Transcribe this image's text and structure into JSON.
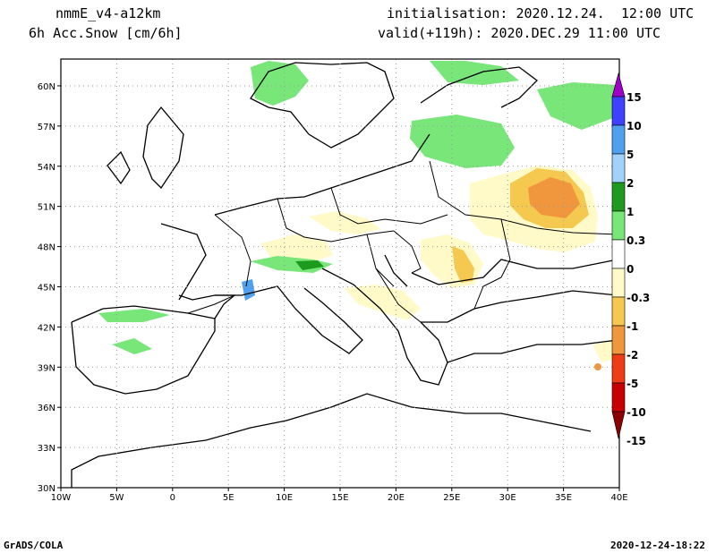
{
  "header": {
    "model": "nmmE_v4-a12km",
    "field": "6h Acc.Snow [cm/6h]",
    "init": "initialisation: 2020.12.24.  12:00 UTC",
    "valid": "valid(+119h): 2020.DEC.29 11:00 UTC"
  },
  "footer": {
    "software": "GrADS/COLA",
    "timestamp": "2020-12-24-18:22"
  },
  "map": {
    "lon_range": [
      -10,
      40
    ],
    "lat_range": [
      30,
      62
    ],
    "lon_ticks": [
      {
        "v": -10,
        "t": "10W"
      },
      {
        "v": -5,
        "t": "5W"
      },
      {
        "v": 0,
        "t": "0"
      },
      {
        "v": 5,
        "t": "5E"
      },
      {
        "v": 10,
        "t": "10E"
      },
      {
        "v": 15,
        "t": "15E"
      },
      {
        "v": 20,
        "t": "20E"
      },
      {
        "v": 25,
        "t": "25E"
      },
      {
        "v": 30,
        "t": "30E"
      },
      {
        "v": 35,
        "t": "35E"
      },
      {
        "v": 40,
        "t": "40E"
      }
    ],
    "lat_ticks": [
      {
        "v": 30,
        "t": "30N"
      },
      {
        "v": 33,
        "t": "33N"
      },
      {
        "v": 36,
        "t": "36N"
      },
      {
        "v": 39,
        "t": "39N"
      },
      {
        "v": 42,
        "t": "42N"
      },
      {
        "v": 45,
        "t": "45N"
      },
      {
        "v": 48,
        "t": "48N"
      },
      {
        "v": 51,
        "t": "51N"
      },
      {
        "v": 54,
        "t": "54N"
      },
      {
        "v": 57,
        "t": "57N"
      },
      {
        "v": 60,
        "t": "60N"
      }
    ],
    "grid": true
  },
  "colorbar": {
    "colors": [
      "#a000c8",
      "#4040ff",
      "#50a0f0",
      "#a0d2fa",
      "#1e9b1e",
      "#78e678",
      "#ffffff",
      "#fffac8",
      "#f5c850",
      "#f0963c",
      "#f03c14",
      "#c80000",
      "#8c0000"
    ],
    "labels": [
      "15",
      "10",
      "5",
      "2",
      "1",
      "0.3",
      "0",
      "-0.3",
      "-1",
      "-2",
      "-5",
      "-10",
      "-15"
    ]
  },
  "colors": {
    "snow_light": "#78e678",
    "snow_dark": "#1e9b1e",
    "snow_blue": "#50a0f0",
    "melt_light": "#fffac8",
    "melt_mid": "#f5c850",
    "melt_strong": "#f0963c"
  }
}
